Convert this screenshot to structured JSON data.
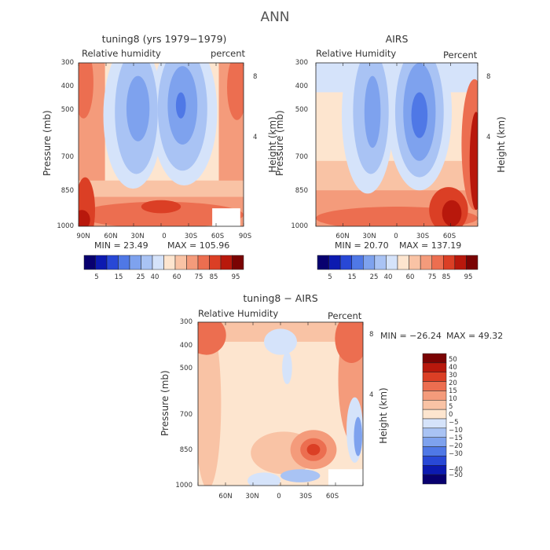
{
  "title": "ANN",
  "colors": {
    "bar1": [
      "#08006f",
      "#0c1ab0",
      "#2848d6",
      "#4f78e6",
      "#7ea2ee",
      "#a9c3f4",
      "#d5e3fa",
      "#fde5cf",
      "#f9c3a5",
      "#f49b7b",
      "#ec6e50",
      "#db3f25",
      "#b8180c",
      "#7a0303"
    ],
    "bar3": [
      "#08006f",
      "#0c1ab0",
      "#2848d6",
      "#4f78e6",
      "#7ea2ee",
      "#a9c3f4",
      "#d5e3fa",
      "#fde5cf",
      "#f9c3a5",
      "#f49b7b",
      "#ec6e50",
      "#db3f25",
      "#b8180c",
      "#7a0303"
    ]
  },
  "chart_data": [
    {
      "type": "heatmap",
      "title": "tuning8 (yrs 1979−1979)",
      "left_label": "Relative humidity",
      "right_label": "percent",
      "ylabel": "Pressure (mb)",
      "y2label": "Height (km)",
      "y_ticks": [
        "300",
        "400",
        "500",
        "700",
        "850",
        "1000"
      ],
      "y2_ticks": [
        "8",
        "4"
      ],
      "x_ticks": [
        "90N",
        "60N",
        "30N",
        "0",
        "30S",
        "60S",
        "90S"
      ],
      "min_label": "MIN = 23.49",
      "max_label": "MAX = 105.96",
      "min": 23.49,
      "max": 105.96,
      "colorbar_labels": [
        "5",
        "15",
        "25",
        "40",
        "60",
        "75",
        "85",
        "95"
      ]
    },
    {
      "type": "heatmap",
      "title": "AIRS",
      "left_label": "Relative Humidity",
      "right_label": "Percent",
      "ylabel": "Pressure (mb)",
      "y2label": "Height (km)",
      "y_ticks": [
        "300",
        "400",
        "500",
        "700",
        "850",
        "1000"
      ],
      "y2_ticks": [
        "8",
        "4"
      ],
      "x_ticks": [
        "60N",
        "30N",
        "0",
        "30S",
        "60S"
      ],
      "min_label": "MIN = 20.70",
      "max_label": "MAX = 137.19",
      "min": 20.7,
      "max": 137.19,
      "colorbar_labels": [
        "5",
        "15",
        "25",
        "40",
        "60",
        "75",
        "85",
        "95"
      ]
    },
    {
      "type": "heatmap",
      "title": "tuning8 − AIRS",
      "left_label": "Relative Humidity",
      "right_label": "Percent",
      "ylabel": "Pressure (mb)",
      "y2label": "Height (km)",
      "y_ticks": [
        "300",
        "400",
        "500",
        "700",
        "850",
        "1000"
      ],
      "y2_ticks": [
        "8",
        "4"
      ],
      "x_ticks": [
        "60N",
        "30N",
        "0",
        "30S",
        "60S"
      ],
      "min_label": "MIN = −26.24",
      "max_label": "MAX = 49.32",
      "min": -26.24,
      "max": 49.32,
      "colorbar_labels": [
        "50",
        "40",
        "30",
        "20",
        "15",
        "10",
        "5",
        "0",
        "−5",
        "−10",
        "−15",
        "−20",
        "−30",
        "−40",
        "−50"
      ]
    }
  ]
}
